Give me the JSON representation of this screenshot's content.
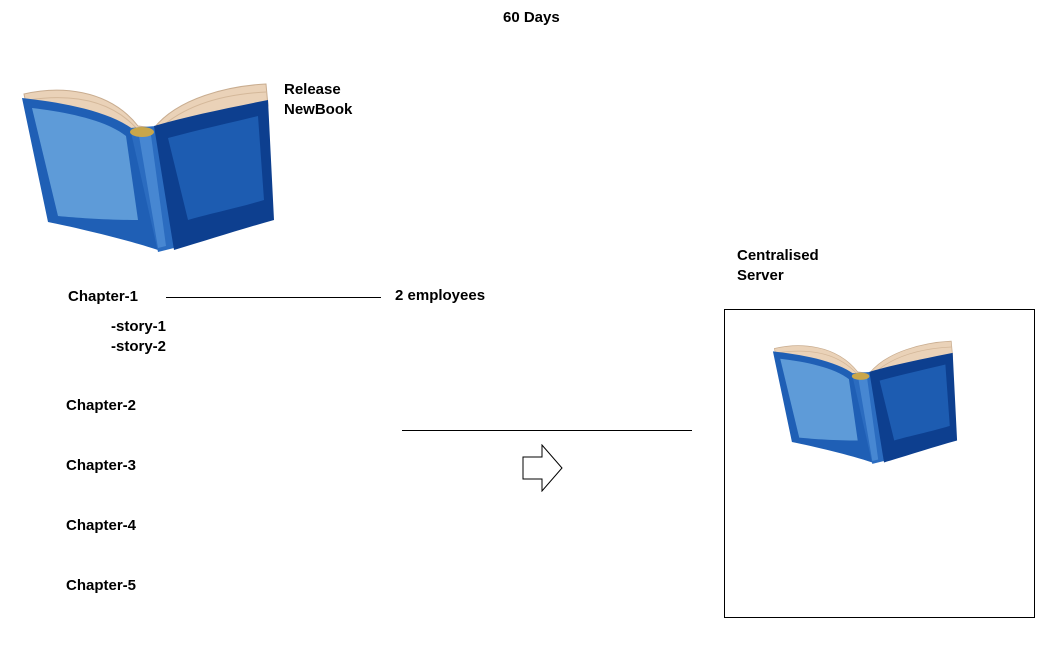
{
  "title": "60 Days",
  "release": {
    "line1": "Release",
    "line2": "NewBook",
    "icon": "open-book-icon"
  },
  "chapters": [
    {
      "label": "Chapter-1",
      "stories": [
        "-story-1",
        "-story-2"
      ],
      "connector_label": "2 employees"
    },
    {
      "label": "Chapter-2"
    },
    {
      "label": "Chapter-3"
    },
    {
      "label": "Chapter-4"
    },
    {
      "label": "Chapter-5"
    }
  ],
  "server": {
    "line1": "Centralised",
    "line2": "Server",
    "icon": "open-book-icon"
  },
  "colors": {
    "book_cover_dark": "#0d3f8f",
    "book_cover_mid": "#1f5fb5",
    "book_cover_light": "#6aa6de",
    "book_pages": "#ead2b8",
    "book_spine_gold": "#c9a64a"
  },
  "flow_icon": "right-arrow-icon"
}
